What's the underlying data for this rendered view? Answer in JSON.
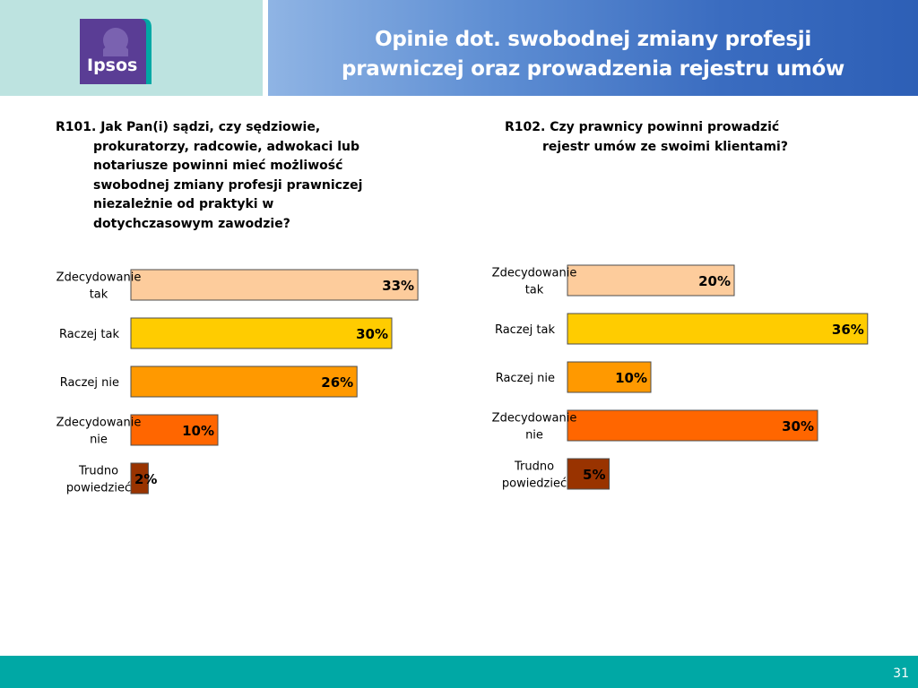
{
  "header": {
    "logo_text": "Ipsos",
    "title_line1": "Opinie dot. swobodnej zmiany profesji",
    "title_line2": "prawniczej oraz prowadzenia rejestru umów"
  },
  "questions": {
    "q1": [
      "R101. Jak Pan(i) sądzi, czy sędziowie,",
      "prokuratorzy, radcowie, adwokaci lub",
      "notariusze powinni mieć możliwość",
      "swobodnej zmiany profesji prawniczej",
      "niezależnie od praktyki w",
      "dotychczasowym zawodzie?"
    ],
    "q2": [
      "R102. Czy prawnicy powinni prowadzić",
      "rejestr umów ze swoimi klientami?"
    ]
  },
  "chart_data": [
    {
      "type": "bar",
      "orientation": "horizontal",
      "title": "",
      "categories": [
        [
          "Zdecydowanie",
          "tak"
        ],
        [
          "Raczej tak"
        ],
        [
          "Raczej nie"
        ],
        [
          "Zdecydowanie",
          "nie"
        ],
        [
          "Trudno",
          "powiedzieć"
        ]
      ],
      "values": [
        33,
        30,
        26,
        10,
        2
      ],
      "value_labels": [
        "33%",
        "30%",
        "26%",
        "10%",
        "2%"
      ],
      "colors": [
        "#fdcc9c",
        "#ffcc00",
        "#ff9900",
        "#ff6600",
        "#993300"
      ],
      "xlim": [
        0,
        36
      ],
      "grid": false,
      "legend": "none"
    },
    {
      "type": "bar",
      "orientation": "horizontal",
      "title": "",
      "categories": [
        [
          "Zdecydowanie",
          "tak"
        ],
        [
          "Raczej tak"
        ],
        [
          "Raczej nie"
        ],
        [
          "Zdecydowanie",
          "nie"
        ],
        [
          "Trudno",
          "powiedzieć"
        ]
      ],
      "values": [
        20,
        36,
        10,
        30,
        5
      ],
      "value_labels": [
        "20%",
        "36%",
        "10%",
        "30%",
        "5%"
      ],
      "colors": [
        "#fdcc9c",
        "#ffcc00",
        "#ff9900",
        "#ff6600",
        "#993300"
      ],
      "xlim": [
        0,
        36
      ],
      "grid": false,
      "legend": "none"
    }
  ],
  "footer": {
    "page_number": "31",
    "bar_color": "#00a8a5"
  }
}
